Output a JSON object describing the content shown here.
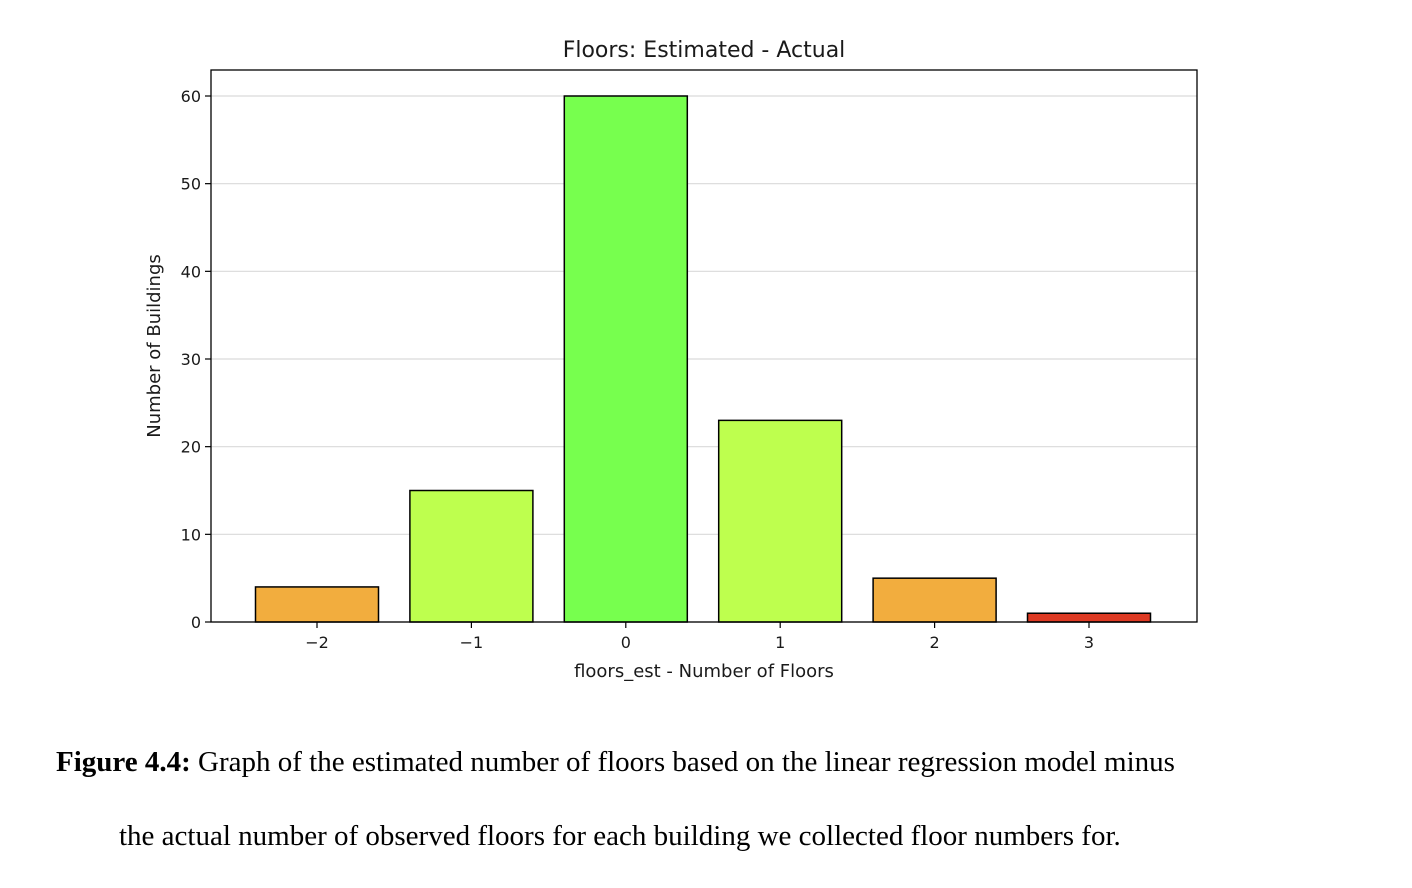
{
  "chart_data": {
    "type": "bar",
    "title": "Floors: Estimated - Actual",
    "xlabel": "floors_est - Number of Floors",
    "ylabel": "Number of Buildings",
    "categories": [
      "−2",
      "−1",
      "0",
      "1",
      "2",
      "3"
    ],
    "values": [
      4,
      15,
      60,
      23,
      5,
      1
    ],
    "colors": [
      "#f2ad3e",
      "#beff4e",
      "#77ff4e",
      "#beff4e",
      "#f2ad3e",
      "#de3a23"
    ],
    "yticks": [
      "0",
      "10",
      "20",
      "30",
      "40",
      "50",
      "60"
    ],
    "ylim": [
      0,
      63
    ],
    "grid": "horizontal"
  },
  "caption": {
    "label": "Figure 4.4:",
    "line1": " Graph of the estimated number of floors based on the linear regression model minus",
    "line2": "the actual number of observed floors for each building we collected floor numbers for."
  }
}
